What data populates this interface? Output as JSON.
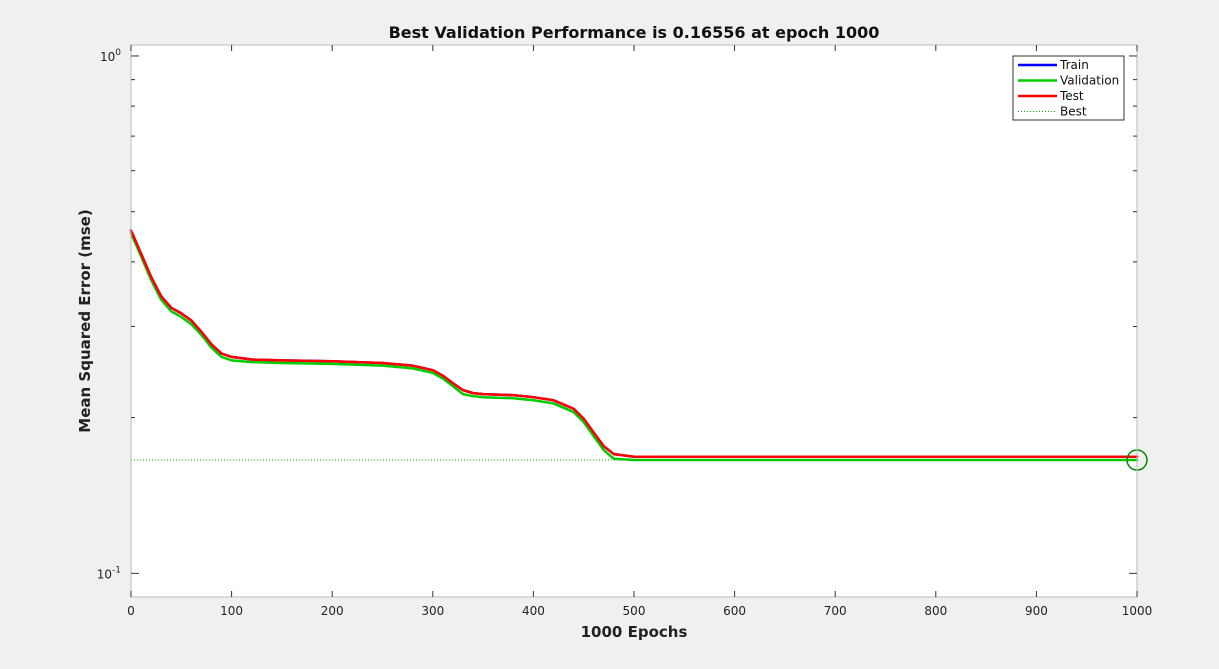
{
  "chart_data": {
    "type": "line",
    "title": "Best Validation Performance is 0.16556 at epoch 1000",
    "xlabel": "1000 Epochs",
    "ylabel": "Mean Squared Error  (mse)",
    "xlim": [
      0,
      1000
    ],
    "ylim": [
      0.09,
      1.05
    ],
    "yscale": "log",
    "xticks": [
      0,
      100,
      200,
      300,
      400,
      500,
      600,
      700,
      800,
      900,
      1000
    ],
    "xtick_labels": [
      "0",
      "100",
      "200",
      "300",
      "400",
      "500",
      "600",
      "700",
      "800",
      "900",
      "1000"
    ],
    "yticks": [
      {
        "value": 1,
        "base": "10",
        "exp": "0"
      },
      {
        "value": 0.1,
        "base": "10",
        "exp": "-1"
      }
    ],
    "grid": false,
    "legend_position": "top-right",
    "series": [
      {
        "name": "Train",
        "color": "#0000ff",
        "x": [
          0,
          10,
          20,
          30,
          40,
          50,
          60,
          70,
          80,
          90,
          100,
          120,
          150,
          200,
          250,
          280,
          300,
          310,
          320,
          330,
          340,
          350,
          380,
          400,
          420,
          440,
          450,
          460,
          470,
          480,
          500,
          600,
          700,
          800,
          900,
          1000
        ],
        "y": [
          0.46,
          0.415,
          0.374,
          0.343,
          0.326,
          0.318,
          0.308,
          0.293,
          0.277,
          0.266,
          0.262,
          0.259,
          0.258,
          0.257,
          0.255,
          0.252,
          0.247,
          0.241,
          0.233,
          0.226,
          0.223,
          0.222,
          0.221,
          0.219,
          0.216,
          0.208,
          0.199,
          0.187,
          0.176,
          0.17,
          0.168,
          0.168,
          0.168,
          0.168,
          0.168,
          0.168
        ]
      },
      {
        "name": "Validation",
        "color": "#00cc00",
        "x": [
          0,
          10,
          20,
          30,
          40,
          50,
          60,
          70,
          80,
          90,
          100,
          120,
          150,
          200,
          250,
          280,
          300,
          310,
          320,
          330,
          340,
          350,
          380,
          400,
          420,
          440,
          450,
          460,
          470,
          480,
          500,
          600,
          700,
          800,
          900,
          1000
        ],
        "y": [
          0.455,
          0.41,
          0.369,
          0.338,
          0.321,
          0.313,
          0.303,
          0.289,
          0.273,
          0.262,
          0.258,
          0.256,
          0.255,
          0.254,
          0.252,
          0.249,
          0.244,
          0.238,
          0.23,
          0.222,
          0.22,
          0.219,
          0.218,
          0.216,
          0.213,
          0.205,
          0.196,
          0.184,
          0.173,
          0.1665,
          0.16556,
          0.16556,
          0.16556,
          0.16556,
          0.16556,
          0.16556
        ]
      },
      {
        "name": "Test",
        "color": "#ff0000",
        "x": [
          0,
          10,
          20,
          30,
          40,
          50,
          60,
          70,
          80,
          90,
          100,
          120,
          150,
          200,
          250,
          280,
          300,
          310,
          320,
          330,
          340,
          350,
          380,
          400,
          420,
          440,
          450,
          460,
          470,
          480,
          500,
          600,
          700,
          800,
          900,
          1000
        ],
        "y": [
          0.46,
          0.415,
          0.374,
          0.343,
          0.326,
          0.318,
          0.308,
          0.293,
          0.277,
          0.266,
          0.262,
          0.259,
          0.258,
          0.257,
          0.255,
          0.252,
          0.247,
          0.241,
          0.233,
          0.226,
          0.223,
          0.222,
          0.221,
          0.219,
          0.216,
          0.208,
          0.199,
          0.187,
          0.176,
          0.17,
          0.168,
          0.168,
          0.168,
          0.168,
          0.168,
          0.168
        ]
      },
      {
        "name": "Best",
        "color": "#00aa00",
        "style": "dotted",
        "best_epoch": 1000,
        "best_value": 0.16556
      }
    ]
  }
}
